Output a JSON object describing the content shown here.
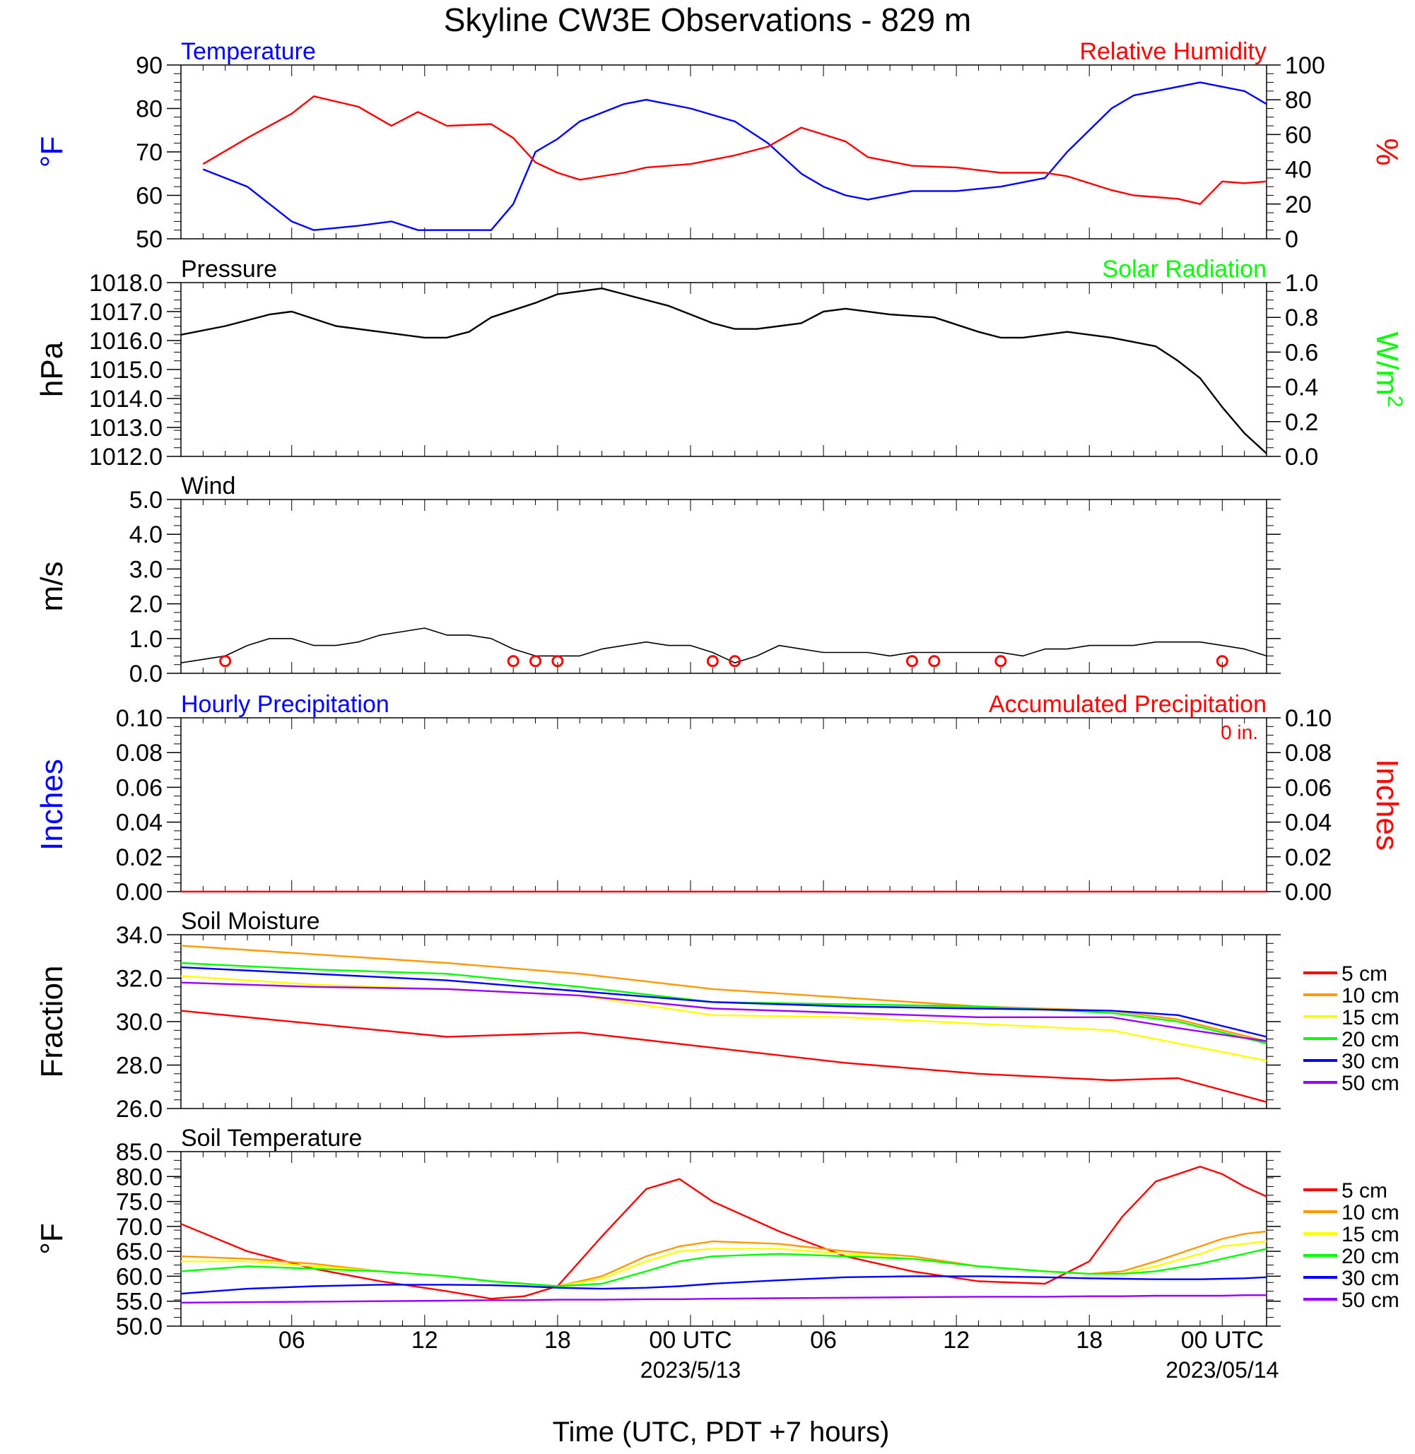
{
  "title": "Skyline CW3E Observations - 829 m",
  "xlabel": "Time (UTC, PDT +7 hours)",
  "x_ticks": [
    "06",
    "12",
    "18",
    "00 UTC",
    "06",
    "12",
    "18",
    "00 UTC"
  ],
  "x_dates": [
    "2023/5/13",
    "2023/05/14"
  ],
  "chart_data": [
    {
      "type": "line",
      "panel": "temperature_humidity",
      "title_left": "Temperature",
      "title_right": "Relative Humidity",
      "ylabel_left": "°F",
      "ylabel_right": "%",
      "ylim_left": [
        50,
        90
      ],
      "ylim_right": [
        0,
        100
      ],
      "yticks_left": [
        "50",
        "60",
        "70",
        "80",
        "90"
      ],
      "yticks_right": [
        "0",
        "20",
        "40",
        "60",
        "80",
        "100"
      ],
      "x_hours": [
        1,
        3,
        5,
        6,
        8,
        9.5,
        10.7,
        12,
        14,
        15,
        16,
        17,
        18,
        20,
        21,
        23,
        25,
        26.5,
        28,
        29,
        30,
        31,
        33,
        35,
        37,
        39,
        40,
        42,
        43,
        45,
        46,
        47,
        48,
        49
      ],
      "series": [
        {
          "name": "Temperature",
          "axis": "left",
          "color": "#0000ff",
          "values": [
            66,
            62,
            54,
            52,
            53,
            54,
            52,
            52,
            52,
            58,
            70,
            73,
            77,
            81,
            82,
            80,
            77,
            72,
            65,
            62,
            60,
            59,
            61,
            61,
            62,
            64,
            70,
            80,
            83,
            85,
            86,
            85,
            84,
            81
          ]
        },
        {
          "name": "Relative Humidity",
          "axis": "right",
          "color": "#ff0000",
          "values": [
            43,
            58,
            72,
            82,
            76,
            65,
            73,
            65,
            66,
            58,
            44,
            38,
            34,
            38,
            41,
            43,
            48,
            53,
            64,
            60,
            56,
            47,
            42,
            41,
            38,
            38,
            36,
            28,
            25,
            23,
            20,
            33,
            32,
            33
          ]
        }
      ]
    },
    {
      "type": "line",
      "panel": "pressure",
      "title_left": "Pressure",
      "title_right": "Solar Radiation",
      "ylabel_left": "hPa",
      "ylabel_right": "W/m",
      "ylabel_right_sup": "2",
      "ylim_left": [
        1012,
        1018
      ],
      "ylim_right": [
        0,
        1
      ],
      "yticks_left": [
        "1012.0",
        "1013.0",
        "1014.0",
        "1015.0",
        "1016.0",
        "1017.0",
        "1018.0"
      ],
      "yticks_right": [
        "0.0",
        "0.2",
        "0.4",
        "0.6",
        "0.8",
        "1.0"
      ],
      "x_hours": [
        0,
        2,
        4,
        5,
        7,
        9,
        11,
        12,
        13,
        14,
        16,
        17,
        18,
        19,
        20,
        22,
        24,
        25,
        26,
        27,
        28,
        29,
        30,
        32,
        34,
        36,
        37,
        38,
        40,
        42,
        44,
        45,
        46,
        47,
        48,
        49
      ],
      "series": [
        {
          "name": "Pressure",
          "color": "#000000",
          "values": [
            1016.2,
            1016.5,
            1016.9,
            1017.0,
            1016.5,
            1016.3,
            1016.1,
            1016.1,
            1016.3,
            1016.8,
            1017.3,
            1017.6,
            1017.7,
            1017.8,
            1017.6,
            1017.2,
            1016.6,
            1016.4,
            1016.4,
            1016.5,
            1016.6,
            1017.0,
            1017.1,
            1016.9,
            1016.8,
            1016.3,
            1016.1,
            1016.1,
            1016.3,
            1016.1,
            1015.8,
            1015.3,
            1014.7,
            1013.7,
            1012.8,
            1012.1
          ]
        }
      ]
    },
    {
      "type": "line",
      "panel": "wind",
      "title_left": "Wind",
      "ylabel_left": "m/s",
      "ylim_left": [
        0,
        5
      ],
      "yticks_left": [
        "0.0",
        "1.0",
        "2.0",
        "3.0",
        "4.0",
        "5.0"
      ],
      "x_hours": [
        0,
        1,
        2,
        3,
        4,
        5,
        6,
        7,
        8,
        9,
        10,
        11,
        12,
        13,
        14,
        15,
        16,
        17,
        18,
        19,
        20,
        21,
        22,
        23,
        24,
        25,
        26,
        27,
        28,
        29,
        30,
        31,
        32,
        33,
        34,
        35,
        36,
        37,
        38,
        39,
        40,
        41,
        42,
        43,
        44,
        45,
        46,
        47,
        48,
        49
      ],
      "series": [
        {
          "name": "Wind speed",
          "color": "#000000",
          "values": [
            0.3,
            0.4,
            0.5,
            0.8,
            1.0,
            1.0,
            0.8,
            0.8,
            0.9,
            1.1,
            1.2,
            1.3,
            1.1,
            1.1,
            1.0,
            0.7,
            0.5,
            0.5,
            0.5,
            0.7,
            0.8,
            0.9,
            0.8,
            0.8,
            0.6,
            0.3,
            0.5,
            0.8,
            0.7,
            0.6,
            0.6,
            0.6,
            0.5,
            0.6,
            0.6,
            0.6,
            0.6,
            0.6,
            0.5,
            0.7,
            0.7,
            0.8,
            0.8,
            0.8,
            0.9,
            0.9,
            0.9,
            0.8,
            0.7,
            0.5
          ]
        }
      ],
      "calm_markers_hours": [
        2,
        15,
        16,
        17,
        24,
        25,
        33,
        34,
        37,
        47
      ]
    },
    {
      "type": "line",
      "panel": "precipitation",
      "title_left": "Hourly Precipitation",
      "title_right": "Accumulated Precipitation",
      "annotation": "0 in.",
      "ylabel_left": "Inches",
      "ylabel_right": "Inches",
      "ylim_left": [
        0,
        0.1
      ],
      "ylim_right": [
        0,
        0.1
      ],
      "yticks_left": [
        "0.00",
        "0.02",
        "0.04",
        "0.06",
        "0.08",
        "0.10"
      ],
      "yticks_right": [
        "0.00",
        "0.02",
        "0.04",
        "0.06",
        "0.08",
        "0.10"
      ],
      "x_hours": [
        0,
        49
      ],
      "series": [
        {
          "name": "Accumulated Precipitation",
          "color": "#ff0000",
          "values": [
            0,
            0
          ]
        }
      ]
    },
    {
      "type": "line",
      "panel": "soil_moisture",
      "title_left": "Soil Moisture",
      "ylabel_left": "Fraction",
      "ylim_left": [
        26,
        34
      ],
      "yticks_left": [
        "26.0",
        "28.0",
        "30.0",
        "32.0",
        "34.0"
      ],
      "x_hours": [
        0,
        6,
        12,
        18,
        24,
        30,
        36,
        42,
        45,
        49
      ],
      "series": [
        {
          "name": "5 cm",
          "color": "#ff0000",
          "values": [
            30.5,
            29.9,
            29.3,
            29.5,
            28.8,
            28.1,
            27.6,
            27.3,
            27.4,
            26.3
          ]
        },
        {
          "name": "10 cm",
          "color": "#ff9900",
          "values": [
            33.5,
            33.1,
            32.7,
            32.2,
            31.5,
            31.1,
            30.7,
            30.5,
            30.1,
            29.1
          ]
        },
        {
          "name": "15 cm",
          "color": "#ffff00",
          "values": [
            32.1,
            31.7,
            31.5,
            31.2,
            30.3,
            30.2,
            29.9,
            29.6,
            29.0,
            28.2
          ]
        },
        {
          "name": "20 cm",
          "color": "#00ff00",
          "values": [
            32.7,
            32.4,
            32.2,
            31.6,
            30.9,
            30.8,
            30.7,
            30.4,
            30.0,
            29.0
          ]
        },
        {
          "name": "30 cm",
          "color": "#0000ff",
          "values": [
            32.5,
            32.2,
            31.9,
            31.4,
            30.9,
            30.7,
            30.6,
            30.5,
            30.3,
            29.3
          ]
        },
        {
          "name": "50 cm",
          "color": "#9900ff",
          "values": [
            31.8,
            31.6,
            31.5,
            31.2,
            30.6,
            30.4,
            30.2,
            30.2,
            29.7,
            29.1
          ]
        }
      ]
    },
    {
      "type": "line",
      "panel": "soil_temperature",
      "title_left": "Soil Temperature",
      "ylabel_left": "°F",
      "ylim_left": [
        50,
        85
      ],
      "yticks_left": [
        "50.0",
        "55.0",
        "60.0",
        "65.0",
        "70.0",
        "75.0",
        "80.0",
        "85.0"
      ],
      "x_hours": [
        0,
        3,
        6,
        9,
        12,
        14,
        15.5,
        17,
        19,
        21,
        22.5,
        24,
        27,
        30,
        33,
        36,
        39,
        41,
        42.5,
        44,
        46,
        47,
        48,
        49
      ],
      "series": [
        {
          "name": "5 cm",
          "color": "#ff0000",
          "values": [
            70.5,
            65,
            61.5,
            59,
            57,
            55.5,
            56,
            58,
            68,
            77.5,
            79.5,
            75,
            69,
            64,
            61,
            59,
            58.5,
            63,
            72,
            79,
            82,
            80.5,
            78,
            76
          ]
        },
        {
          "name": "10 cm",
          "color": "#ff9900",
          "values": [
            64,
            63.5,
            62.5,
            61,
            60,
            59,
            58.5,
            58,
            60,
            64,
            66,
            67,
            66.5,
            65,
            64,
            62,
            61,
            60.5,
            61,
            63,
            66,
            67.5,
            68.5,
            69
          ]
        },
        {
          "name": "15 cm",
          "color": "#ffff00",
          "values": [
            63,
            63,
            62,
            61,
            60,
            59,
            58.5,
            58,
            59.5,
            63,
            65,
            65.5,
            65.5,
            64.5,
            63.5,
            62,
            61,
            60.5,
            60.5,
            62,
            64.5,
            66,
            66.5,
            67
          ]
        },
        {
          "name": "20 cm",
          "color": "#00ff00",
          "values": [
            61,
            62,
            61.5,
            61,
            60,
            59,
            58.5,
            58,
            58.5,
            61,
            63,
            64,
            64.5,
            64,
            63.5,
            62,
            61,
            60.5,
            60.5,
            61,
            62.5,
            63.5,
            64.5,
            65.5
          ]
        },
        {
          "name": "30 cm",
          "color": "#0000ff",
          "values": [
            56.5,
            57.5,
            58,
            58.3,
            58.3,
            58.2,
            58,
            57.7,
            57.5,
            57.7,
            58,
            58.5,
            59.2,
            59.8,
            60,
            60,
            59.8,
            59.6,
            59.5,
            59.4,
            59.4,
            59.5,
            59.6,
            59.8
          ]
        },
        {
          "name": "50 cm",
          "color": "#9900ff",
          "values": [
            54.7,
            54.8,
            54.9,
            55,
            55.1,
            55.2,
            55.2,
            55.3,
            55.3,
            55.4,
            55.4,
            55.5,
            55.6,
            55.7,
            55.8,
            55.9,
            55.9,
            56,
            56,
            56.1,
            56.1,
            56.1,
            56.2,
            56.2
          ]
        }
      ],
      "legend": "right"
    }
  ]
}
